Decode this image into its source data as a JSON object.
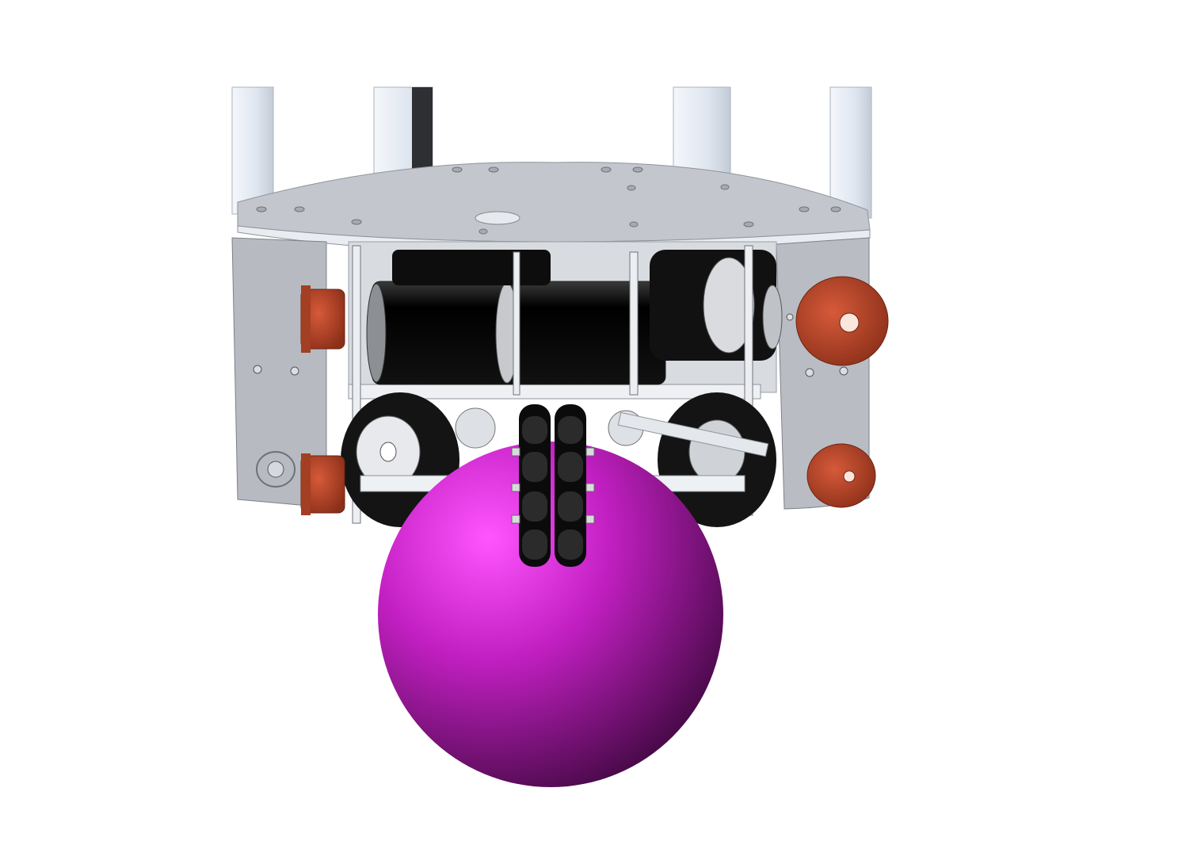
{
  "scene": {
    "background": "#ffffff",
    "colors": {
      "aluminum": "#c9ccd1",
      "aluminum_dark": "#9ea3aa",
      "strut": "#e3e9f2",
      "motor": "#0a0a0a",
      "pulley": "#b8472a",
      "ball": "#c21fc2",
      "roller": "#111111"
    },
    "components": [
      "support-strut",
      "top-plate",
      "side-plate",
      "motor",
      "timing-pulley",
      "omni-wheel",
      "axle",
      "ball"
    ]
  }
}
